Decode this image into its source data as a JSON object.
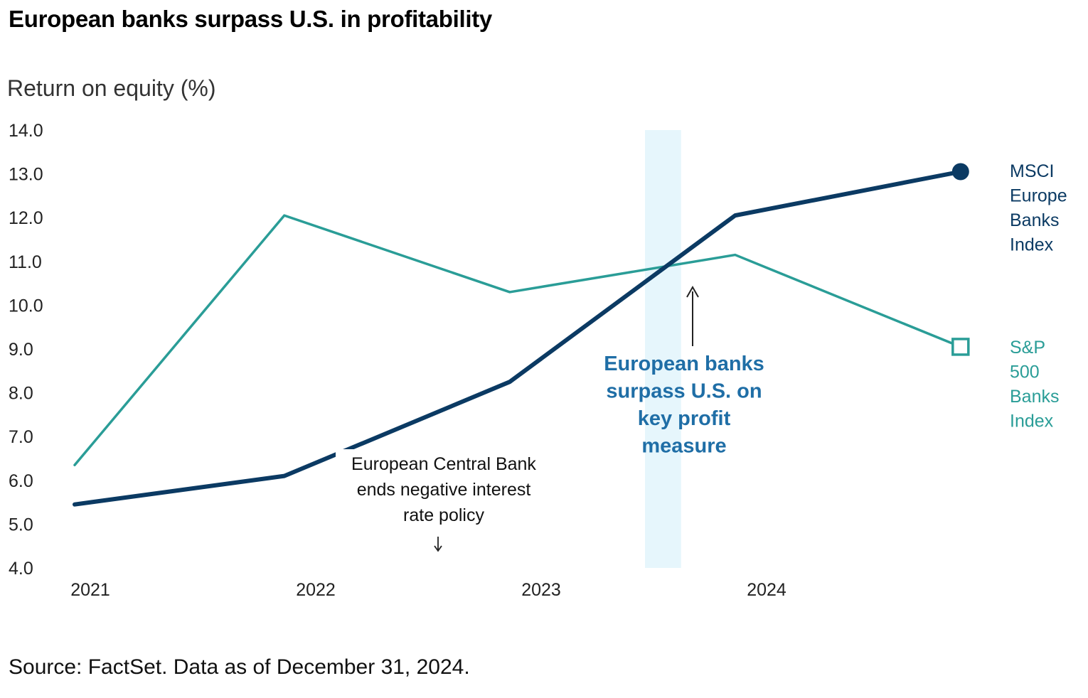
{
  "header": {
    "title": "European banks surpass U.S. in profitability",
    "y_axis_title": "Return on equity (%)"
  },
  "footer": {
    "source": "Source: FactSet. Data as of December 31, 2024."
  },
  "chart_data": {
    "type": "line",
    "title": "European banks surpass U.S. in profitability",
    "ylabel": "Return on equity (%)",
    "xlabel": "",
    "ylim": [
      4.0,
      14.0
    ],
    "yticks": [
      "14.0",
      "13.0",
      "12.0",
      "11.0",
      "10.0",
      "9.0",
      "8.0",
      "7.0",
      "6.0",
      "5.0",
      "4.0"
    ],
    "ytick_values": [
      14,
      13,
      12,
      11,
      10,
      9,
      8,
      7,
      6,
      5,
      4
    ],
    "xlim": [
      2021.0,
      2025.0
    ],
    "xticks": [
      "2021",
      "2022",
      "2023",
      "2024"
    ],
    "xtick_values": [
      2021,
      2022,
      2023,
      2024
    ],
    "grid": false,
    "series": [
      {
        "name": "MSCI Europe Banks Index",
        "label_lines": [
          "MSCI",
          "Europe",
          "Banks",
          "Index"
        ],
        "color": "#0b3a63",
        "marker": "filled-circle",
        "x": [
          2021.0,
          2021.93,
          2022.93,
          2023.93,
          2024.93
        ],
        "values": [
          5.45,
          6.1,
          8.25,
          12.05,
          13.05
        ]
      },
      {
        "name": "S&P 500 Banks Index",
        "label_lines": [
          "S&P",
          "500",
          "Banks",
          "Index"
        ],
        "color": "#2a9d97",
        "marker": "hollow-square",
        "x": [
          2021.0,
          2021.93,
          2022.93,
          2023.93,
          2024.93
        ],
        "values": [
          6.35,
          12.05,
          10.3,
          11.15,
          9.05
        ]
      }
    ],
    "highlight_band": {
      "x_start": 2023.53,
      "x_end": 2023.69,
      "color": "#e6f6fc"
    },
    "annotations": [
      {
        "id": "crossover",
        "lines": [
          "European banks",
          "surpass U.S. on",
          "key profit",
          "measure"
        ],
        "color": "#1f6ea6",
        "arrow": "↑"
      },
      {
        "id": "ecb",
        "lines": [
          "European Central Bank",
          "ends negative interest",
          "rate policy"
        ],
        "color": "#111111",
        "arrow": "↓"
      }
    ]
  }
}
